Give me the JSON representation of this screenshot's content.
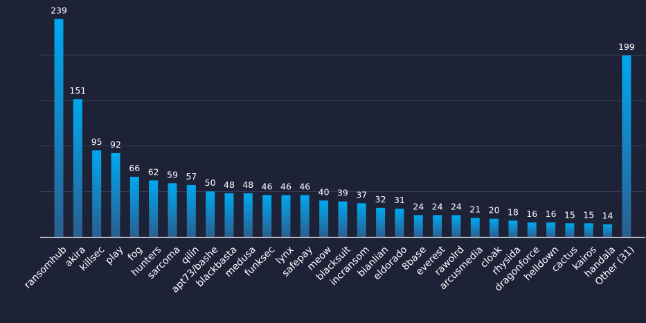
{
  "colors": {
    "background": "#1d2237",
    "bar_top": "#00a8f0",
    "bar_bottom": "#2a5f90",
    "grid": "#3a4058",
    "text": "#ffffff"
  },
  "chart_data": {
    "type": "bar",
    "title": "",
    "xlabel": "",
    "ylabel": "",
    "ylim": [
      0,
      240
    ],
    "grid": true,
    "grid_values": [
      50,
      100,
      150,
      200
    ],
    "categories": [
      "ransomhub",
      "akira",
      "killsec",
      "play",
      "fog",
      "hunters",
      "sarcoma",
      "qilin",
      "apt73/bashe",
      "blackbasta",
      "medusa",
      "funksec",
      "lynx",
      "safepay",
      "meow",
      "blacksuit",
      "incransom",
      "bianlian",
      "eldorado",
      "8base",
      "everest",
      "rawolrd",
      "arcusmedia",
      "cloak",
      "rhysida",
      "dragonforce",
      "helldown",
      "cactus",
      "kairos",
      "handala",
      "Other (31)"
    ],
    "values": [
      239,
      151,
      95,
      92,
      66,
      62,
      59,
      57,
      50,
      48,
      48,
      46,
      46,
      46,
      40,
      39,
      37,
      32,
      31,
      24,
      24,
      24,
      21,
      20,
      18,
      16,
      16,
      15,
      15,
      14,
      199
    ],
    "data_labels": [
      "239",
      "151",
      "95",
      "92",
      "66",
      "62",
      "59",
      "57",
      "50",
      "48",
      "48",
      "46",
      "46",
      "46",
      "40",
      "39",
      "37",
      "32",
      "31",
      "24",
      "24",
      "24",
      "21",
      "20",
      "18",
      "16",
      "16",
      "15",
      "15",
      "14",
      "199"
    ]
  }
}
